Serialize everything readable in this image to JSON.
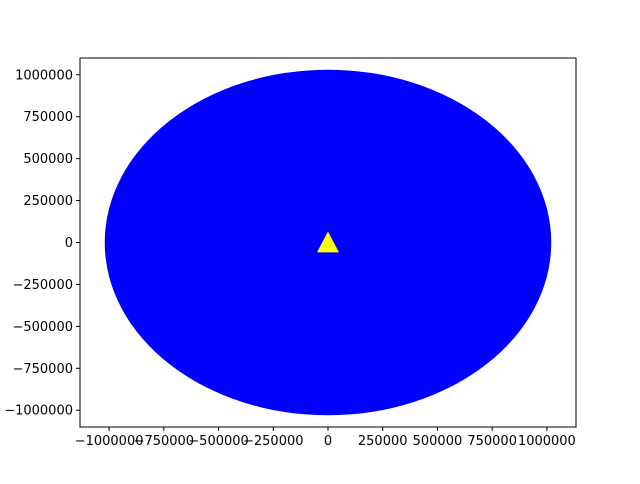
{
  "chart_data": {
    "type": "scatter",
    "title": "",
    "xlabel": "",
    "ylabel": "",
    "xlim": [
      -1133000,
      1133000
    ],
    "ylim": [
      -1100000,
      1100000
    ],
    "xticks": [
      -1000000,
      -750000,
      -500000,
      -250000,
      0,
      250000,
      500000,
      750000,
      1000000
    ],
    "xtick_labels": [
      "−1000000",
      "−750000",
      "−500000",
      "−250000",
      "0",
      "250000",
      "500000",
      "750000",
      "1000000"
    ],
    "yticks": [
      1000000,
      750000,
      500000,
      250000,
      0,
      -250000,
      -500000,
      -750000,
      -1000000
    ],
    "ytick_labels": [
      "1000000",
      "750000",
      "500000",
      "250000",
      "0",
      "−250000",
      "−500000",
      "−750000",
      "−1000000"
    ],
    "grid": false,
    "series": [
      {
        "kind": "filled-disc",
        "color": "#0000ff",
        "center": [
          0,
          0
        ],
        "radius_x": 1020000,
        "radius_y": 1030000
      },
      {
        "kind": "marker",
        "marker": "triangle-up",
        "color": "#ffff00",
        "points": [
          [
            0,
            0
          ]
        ]
      }
    ]
  }
}
